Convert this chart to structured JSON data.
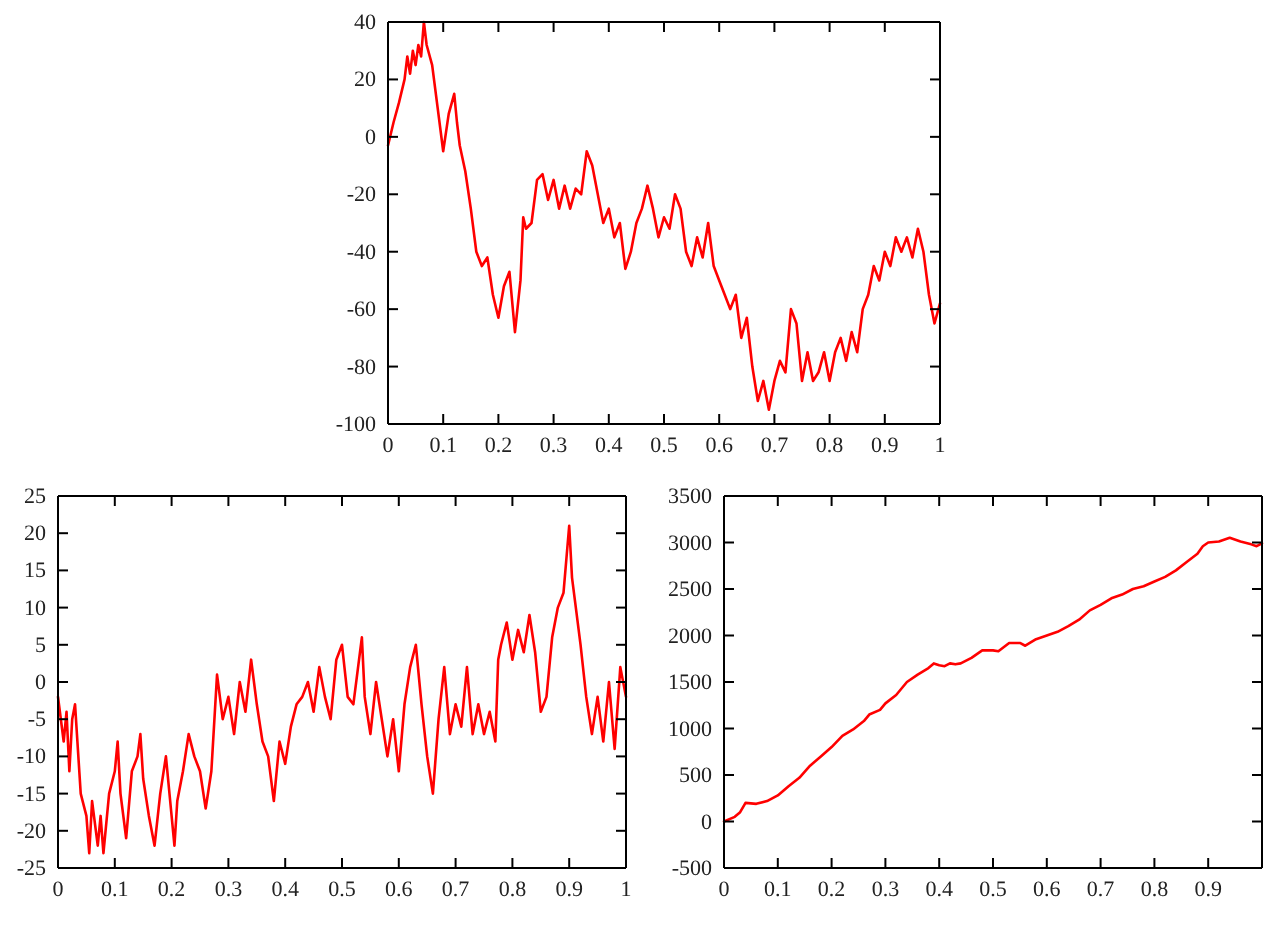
{
  "chart_data": [
    {
      "type": "line",
      "x": [
        0,
        0.01,
        0.02,
        0.03,
        0.035,
        0.04,
        0.045,
        0.05,
        0.055,
        0.06,
        0.065,
        0.07,
        0.08,
        0.09,
        0.1,
        0.11,
        0.12,
        0.125,
        0.13,
        0.14,
        0.15,
        0.16,
        0.17,
        0.18,
        0.19,
        0.2,
        0.21,
        0.22,
        0.23,
        0.24,
        0.245,
        0.25,
        0.26,
        0.27,
        0.28,
        0.29,
        0.3,
        0.31,
        0.32,
        0.33,
        0.34,
        0.35,
        0.36,
        0.37,
        0.38,
        0.39,
        0.4,
        0.41,
        0.42,
        0.43,
        0.44,
        0.45,
        0.46,
        0.47,
        0.48,
        0.49,
        0.5,
        0.51,
        0.52,
        0.53,
        0.54,
        0.55,
        0.56,
        0.57,
        0.58,
        0.59,
        0.6,
        0.61,
        0.62,
        0.63,
        0.64,
        0.65,
        0.66,
        0.67,
        0.68,
        0.69,
        0.7,
        0.71,
        0.72,
        0.73,
        0.74,
        0.75,
        0.76,
        0.77,
        0.78,
        0.79,
        0.8,
        0.81,
        0.82,
        0.83,
        0.84,
        0.85,
        0.86,
        0.87,
        0.88,
        0.89,
        0.9,
        0.91,
        0.92,
        0.93,
        0.94,
        0.95,
        0.96,
        0.97,
        0.98,
        0.99,
        1
      ],
      "series": [
        {
          "color": "#ff0000",
          "values": [
            -3,
            5,
            12,
            20,
            28,
            22,
            30,
            25,
            32,
            28,
            40,
            32,
            25,
            10,
            -5,
            8,
            15,
            5,
            -3,
            -12,
            -25,
            -40,
            -45,
            -42,
            -55,
            -63,
            -52,
            -47,
            -68,
            -50,
            -28,
            -32,
            -30,
            -15,
            -13,
            -22,
            -15,
            -25,
            -17,
            -25,
            -18,
            -20,
            -5,
            -10,
            -20,
            -30,
            -25,
            -35,
            -30,
            -46,
            -40,
            -30,
            -25,
            -17,
            -25,
            -35,
            -28,
            -32,
            -20,
            -25,
            -40,
            -45,
            -35,
            -42,
            -30,
            -45,
            -50,
            -55,
            -60,
            -55,
            -70,
            -63,
            -80,
            -92,
            -85,
            -95,
            -85,
            -78,
            -82,
            -60,
            -65,
            -85,
            -75,
            -85,
            -82,
            -75,
            -85,
            -75,
            -70,
            -78,
            -68,
            -75,
            -60,
            -55,
            -45,
            -50,
            -40,
            -45,
            -35,
            -40,
            -35,
            -42,
            -32,
            -40,
            -55,
            -65,
            -58
          ]
        }
      ],
      "xlim": [
        0,
        1
      ],
      "xticks": [
        0,
        0.1,
        0.2,
        0.3,
        0.4,
        0.5,
        0.6,
        0.7,
        0.8,
        0.9,
        1
      ],
      "ylim": [
        -100,
        40
      ],
      "yticks": [
        -100,
        -80,
        -60,
        -40,
        -20,
        0,
        20,
        40
      ],
      "grid": false,
      "marker": "none",
      "line_style": "solid"
    },
    {
      "type": "line",
      "x": [
        0,
        0.01,
        0.015,
        0.02,
        0.025,
        0.03,
        0.04,
        0.05,
        0.055,
        0.06,
        0.07,
        0.075,
        0.08,
        0.09,
        0.1,
        0.105,
        0.11,
        0.12,
        0.13,
        0.14,
        0.145,
        0.15,
        0.16,
        0.17,
        0.18,
        0.19,
        0.2,
        0.205,
        0.21,
        0.22,
        0.23,
        0.24,
        0.25,
        0.26,
        0.27,
        0.28,
        0.29,
        0.3,
        0.31,
        0.32,
        0.33,
        0.34,
        0.35,
        0.36,
        0.37,
        0.38,
        0.39,
        0.4,
        0.41,
        0.42,
        0.43,
        0.44,
        0.45,
        0.46,
        0.47,
        0.48,
        0.49,
        0.5,
        0.51,
        0.52,
        0.53,
        0.535,
        0.54,
        0.55,
        0.56,
        0.57,
        0.58,
        0.59,
        0.6,
        0.61,
        0.62,
        0.63,
        0.64,
        0.65,
        0.66,
        0.67,
        0.68,
        0.69,
        0.7,
        0.71,
        0.72,
        0.73,
        0.74,
        0.75,
        0.76,
        0.77,
        0.775,
        0.78,
        0.79,
        0.8,
        0.81,
        0.82,
        0.83,
        0.84,
        0.85,
        0.86,
        0.87,
        0.88,
        0.89,
        0.9,
        0.905,
        0.91,
        0.92,
        0.93,
        0.94,
        0.95,
        0.96,
        0.97,
        0.98,
        0.99,
        1
      ],
      "series": [
        {
          "color": "#ff0000",
          "values": [
            -2,
            -8,
            -4,
            -12,
            -5,
            -3,
            -15,
            -18,
            -23,
            -16,
            -22,
            -18,
            -23,
            -15,
            -12,
            -8,
            -15,
            -21,
            -12,
            -10,
            -7,
            -13,
            -18,
            -22,
            -15,
            -10,
            -18,
            -22,
            -16,
            -12,
            -7,
            -10,
            -12,
            -17,
            -12,
            1,
            -5,
            -2,
            -7,
            0,
            -4,
            3,
            -3,
            -8,
            -10,
            -16,
            -8,
            -11,
            -6,
            -3,
            -2,
            0,
            -4,
            2,
            -2,
            -5,
            3,
            5,
            -2,
            -3,
            3,
            6,
            -2,
            -7,
            0,
            -5,
            -10,
            -5,
            -12,
            -3,
            2,
            5,
            -3,
            -10,
            -15,
            -5,
            2,
            -7,
            -3,
            -6,
            2,
            -7,
            -3,
            -7,
            -4,
            -8,
            3,
            5,
            8,
            3,
            7,
            4,
            9,
            4,
            -4,
            -2,
            6,
            10,
            12,
            21,
            14,
            11,
            5,
            -2,
            -7,
            -2,
            -8,
            0,
            -9,
            2,
            -2
          ]
        }
      ],
      "xlim": [
        0,
        1
      ],
      "xticks": [
        0,
        0.1,
        0.2,
        0.3,
        0.4,
        0.5,
        0.6,
        0.7,
        0.8,
        0.9,
        1
      ],
      "ylim": [
        -25,
        25
      ],
      "yticks": [
        -25,
        -20,
        -15,
        -10,
        -5,
        0,
        5,
        10,
        15,
        20,
        25
      ],
      "grid": false,
      "marker": "none",
      "line_style": "solid"
    },
    {
      "type": "line",
      "x": [
        0,
        0.02,
        0.03,
        0.04,
        0.06,
        0.08,
        0.1,
        0.12,
        0.14,
        0.16,
        0.18,
        0.2,
        0.22,
        0.24,
        0.26,
        0.27,
        0.29,
        0.3,
        0.32,
        0.34,
        0.36,
        0.38,
        0.39,
        0.4,
        0.41,
        0.42,
        0.43,
        0.44,
        0.46,
        0.48,
        0.5,
        0.51,
        0.53,
        0.55,
        0.56,
        0.58,
        0.6,
        0.62,
        0.64,
        0.66,
        0.68,
        0.7,
        0.72,
        0.74,
        0.76,
        0.78,
        0.8,
        0.82,
        0.84,
        0.86,
        0.88,
        0.89,
        0.9,
        0.92,
        0.94,
        0.96,
        0.98,
        0.99,
        1
      ],
      "series": [
        {
          "color": "#ff0000",
          "values": [
            0,
            50,
            100,
            200,
            190,
            220,
            280,
            380,
            470,
            600,
            700,
            800,
            920,
            990,
            1080,
            1150,
            1200,
            1270,
            1360,
            1500,
            1580,
            1650,
            1700,
            1680,
            1670,
            1700,
            1690,
            1700,
            1760,
            1840,
            1840,
            1830,
            1920,
            1920,
            1890,
            1960,
            2000,
            2040,
            2100,
            2170,
            2270,
            2330,
            2400,
            2440,
            2500,
            2530,
            2580,
            2630,
            2700,
            2790,
            2880,
            2960,
            3000,
            3010,
            3050,
            3010,
            2980,
            2960,
            2990
          ]
        }
      ],
      "xlim": [
        0,
        1
      ],
      "xticks": [
        0,
        0.1,
        0.2,
        0.3,
        0.4,
        0.5,
        0.6,
        0.7,
        0.8,
        0.9
      ],
      "ylim": [
        -500,
        3500
      ],
      "yticks": [
        -500,
        0,
        500,
        1000,
        1500,
        2000,
        2500,
        3000,
        3500
      ],
      "grid": false,
      "marker": "none",
      "line_style": "solid"
    }
  ]
}
